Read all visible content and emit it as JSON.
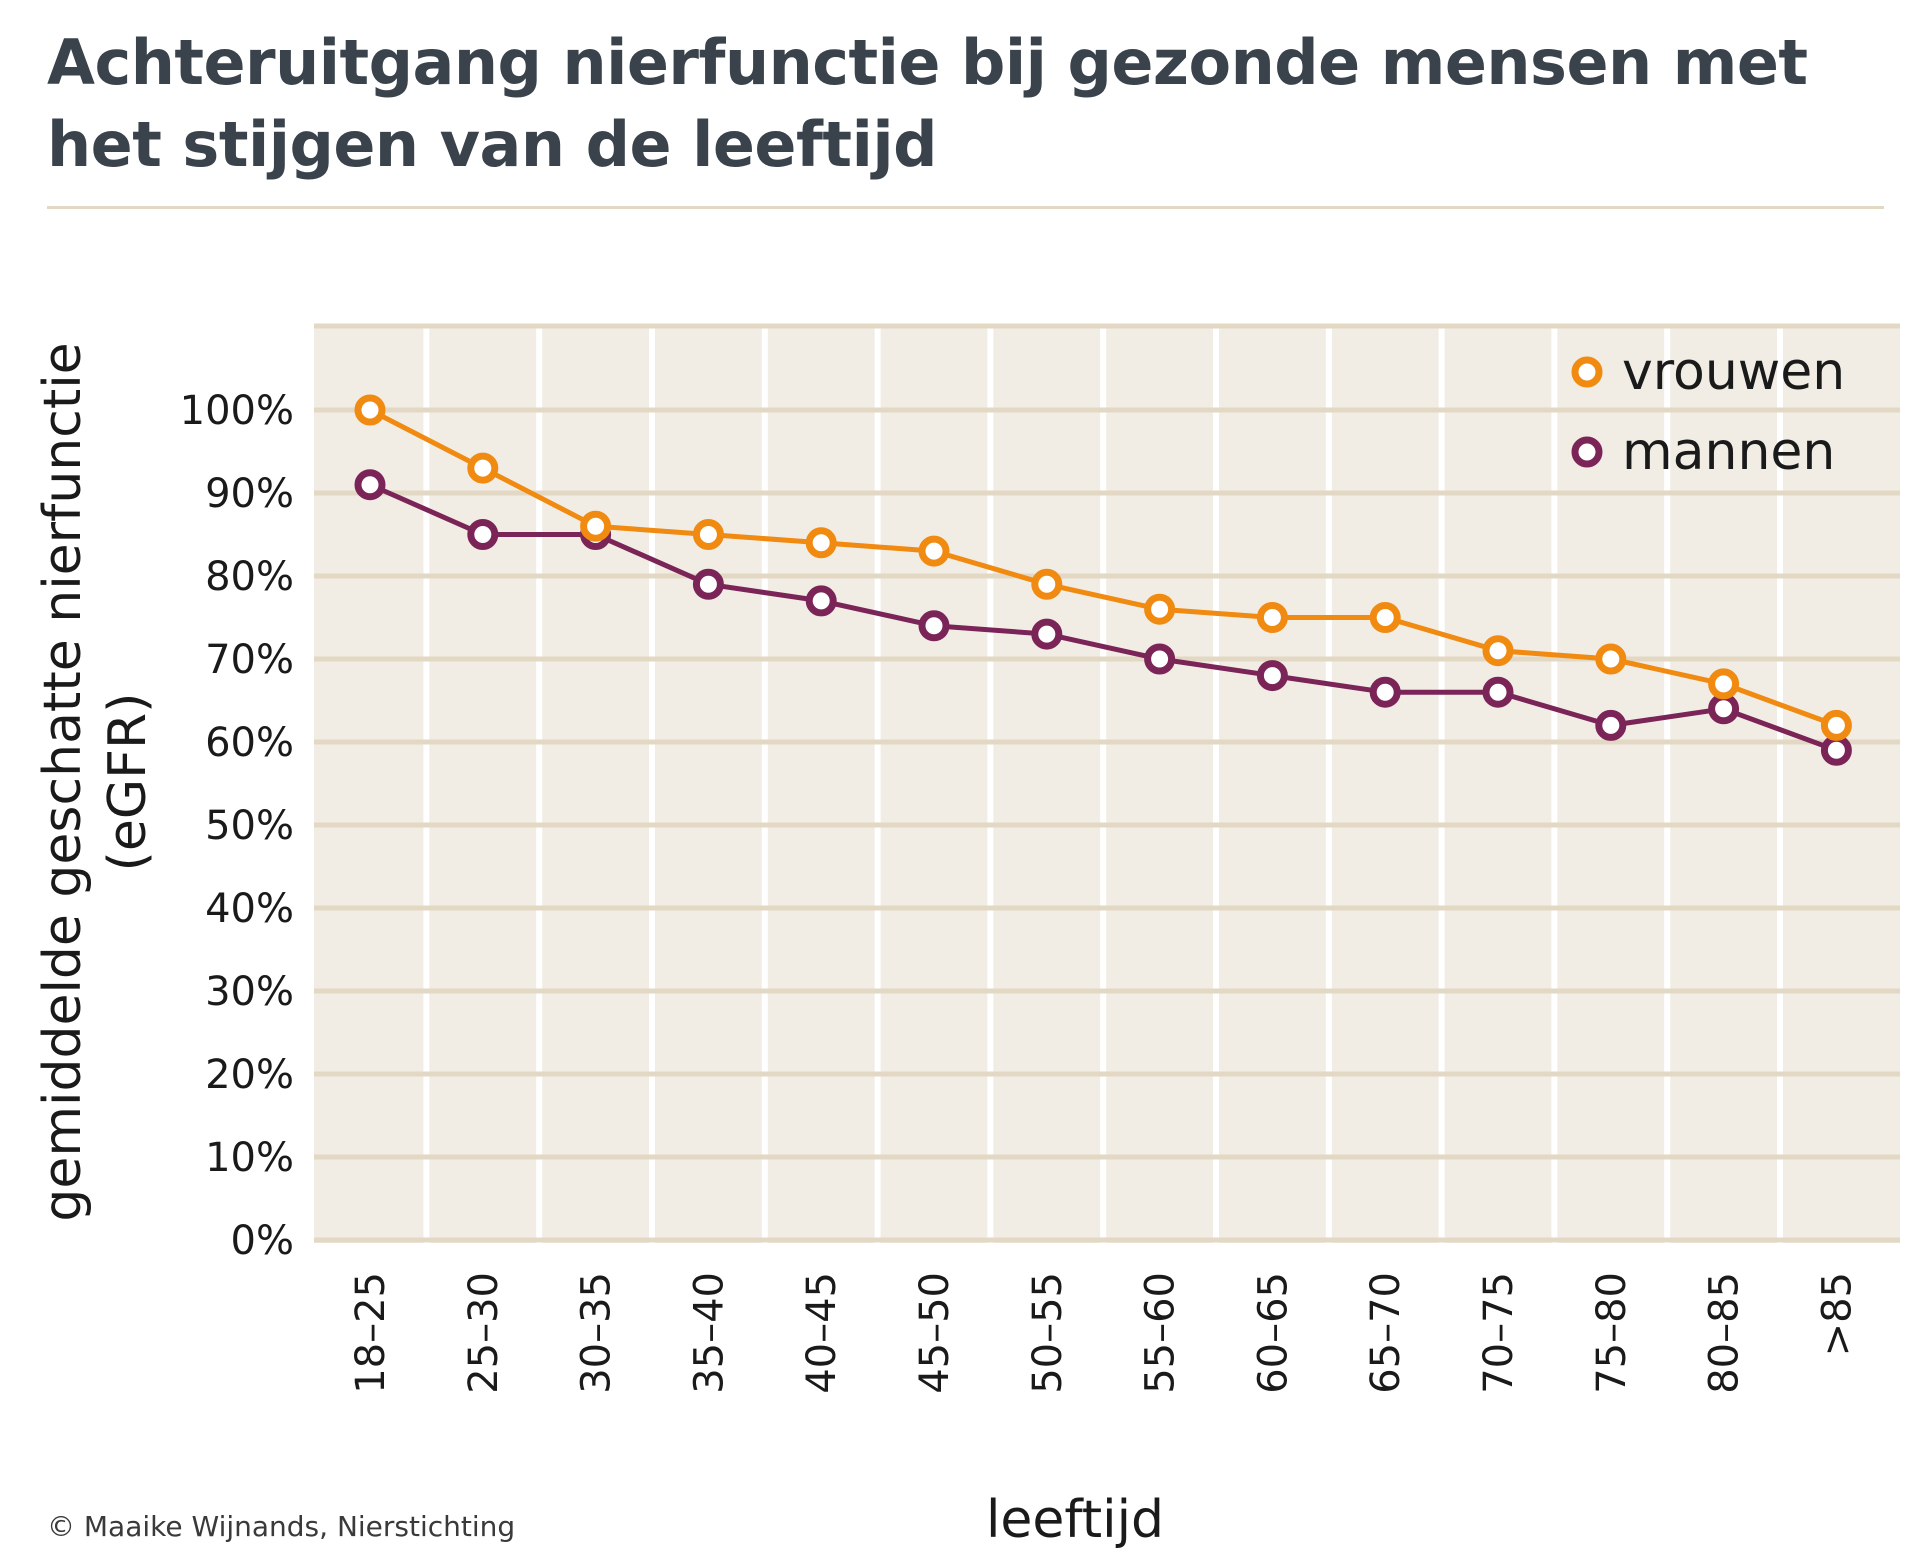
{
  "header": {
    "title": "Achteruitgang nierfunctie bij gezonde mensen met het stijgen van de leeftijd"
  },
  "footer": {
    "credit": "© Maaike Wijnands, Nierstichting"
  },
  "colors": {
    "vrouwen": "#f08a10",
    "mannen": "#7b2457",
    "plot_bg": "#f1ede5",
    "gridline": "#e2d8c4",
    "title": "#3a434c"
  },
  "chart_data": {
    "type": "line",
    "title": "Achteruitgang nierfunctie bij gezonde mensen met het stijgen van de leeftijd",
    "xlabel": "leeftijd",
    "ylabel_lines": [
      "gemiddelde geschatte nierfunctie",
      "(eGFR)"
    ],
    "categories": [
      "18–25",
      "25–30",
      "30–35",
      "35–40",
      "40–45",
      "45–50",
      "50–55",
      "55–60",
      "60–65",
      "65–70",
      "70–75",
      "75–80",
      "80–85",
      ">85"
    ],
    "yticks": [
      "0%",
      "10%",
      "20%",
      "30%",
      "40%",
      "50%",
      "60%",
      "70%",
      "80%",
      "90%",
      "100%"
    ],
    "ylim": [
      0,
      110
    ],
    "legend_position": "top-right",
    "series": [
      {
        "name": "vrouwen",
        "color": "#f08a10",
        "values": [
          100,
          93,
          86,
          85,
          84,
          83,
          79,
          76,
          75,
          75,
          71,
          70,
          67,
          62
        ]
      },
      {
        "name": "mannen",
        "color": "#7b2457",
        "values": [
          91,
          85,
          85,
          79,
          77,
          74,
          73,
          70,
          68,
          66,
          66,
          62,
          64,
          59
        ]
      }
    ]
  }
}
